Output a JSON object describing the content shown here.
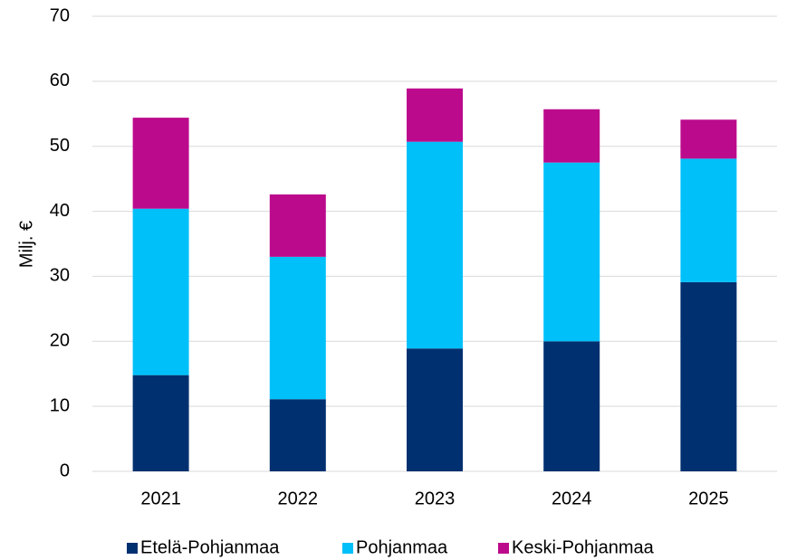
{
  "chart_data": {
    "type": "stacked_bar",
    "y_label": "Milj. €",
    "categories": [
      "2021",
      "2022",
      "2023",
      "2024",
      "2025"
    ],
    "series": [
      {
        "name": "Etelä-Pohjanmaa",
        "color": "#003070",
        "values": [
          14.8,
          11.1,
          18.9,
          20.0,
          29.1
        ]
      },
      {
        "name": "Pohjanmaa",
        "color": "#00c0fa",
        "values": [
          25.6,
          21.9,
          31.8,
          27.5,
          19.0
        ]
      },
      {
        "name": "Keski-Pohjanmaa",
        "color": "#bc0a8c",
        "values": [
          14.0,
          9.6,
          8.2,
          8.2,
          6.0
        ]
      }
    ],
    "ylim": [
      0,
      70
    ],
    "yticks": [
      0,
      10,
      20,
      30,
      40,
      50,
      60,
      70
    ],
    "grid": true,
    "legend": "bottom"
  }
}
